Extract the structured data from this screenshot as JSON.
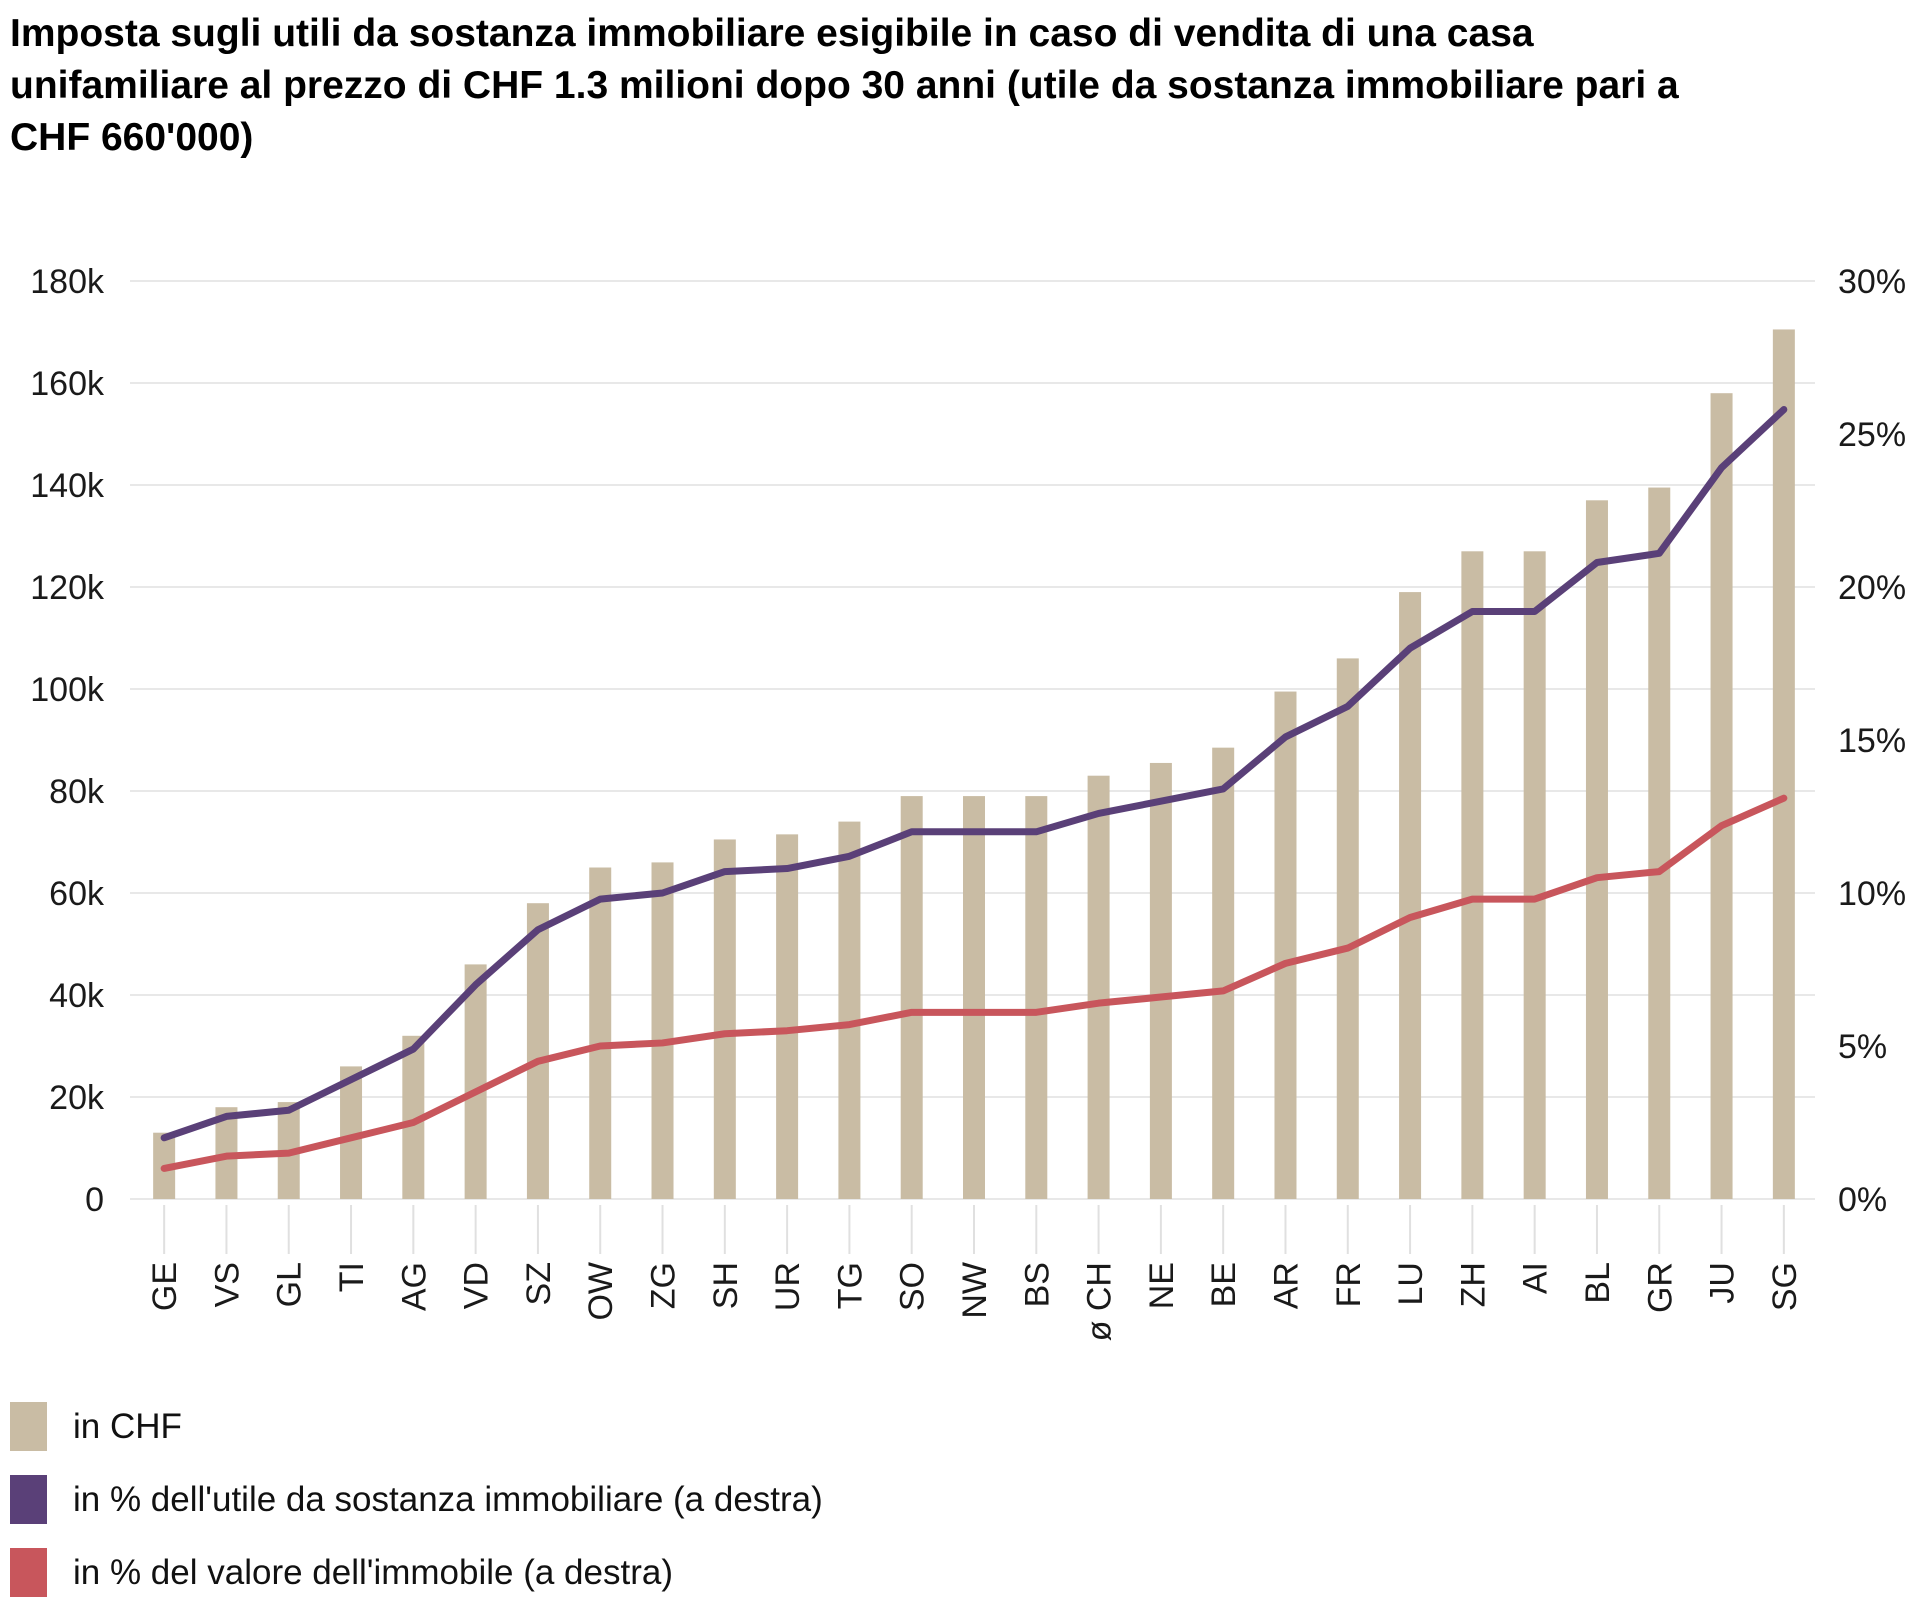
{
  "title_lines": [
    "Imposta sugli utili da sostanza immobiliare esigibile in caso di vendita di una casa",
    "unifamiliare al prezzo di CHF 1.3 milioni dopo 30 anni (utile da sostanza immobiliare pari a",
    "CHF 660'000)"
  ],
  "colors": {
    "bar": "#c9bca4",
    "line_gain_pct": "#5a4078",
    "line_value_pct": "#c8565c",
    "gridline": "#e8e8e8",
    "tick": "#e0e0e0",
    "axis_text": "#1a1a1a"
  },
  "legend": [
    {
      "label": "in CHF",
      "swatch": "bar"
    },
    {
      "label": "in % dell'utile da sostanza immobiliare (a destra)",
      "swatch": "line_gain_pct"
    },
    {
      "label": "in % del valore dell'immobile (a destra)",
      "swatch": "line_value_pct"
    }
  ],
  "chart_data": {
    "type": "bar",
    "title": "Imposta sugli utili da sostanza immobiliare esigibile in caso di vendita di una casa unifamiliare al prezzo di CHF 1.3 milioni dopo 30 anni (utile da sostanza immobiliare pari a CHF 660'000)",
    "categories": [
      "GE",
      "VS",
      "GL",
      "TI",
      "AG",
      "VD",
      "SZ",
      "OW",
      "ZG",
      "SH",
      "UR",
      "TG",
      "SO",
      "NW",
      "BS",
      "ø CH",
      "NE",
      "BE",
      "AR",
      "FR",
      "LU",
      "ZH",
      "AI",
      "BL",
      "GR",
      "JU",
      "SG"
    ],
    "series": [
      {
        "name": "in CHF",
        "type": "bar",
        "axis": "left",
        "values": [
          13000,
          18000,
          19000,
          26000,
          32000,
          46000,
          58000,
          65000,
          66000,
          70500,
          71500,
          74000,
          79000,
          79000,
          79000,
          83000,
          85500,
          88500,
          99500,
          106000,
          119000,
          127000,
          127000,
          137000,
          139500,
          158000,
          170500
        ]
      },
      {
        "name": "in % dell'utile da sostanza immobiliare (a destra)",
        "type": "line",
        "axis": "right",
        "values": [
          2.0,
          2.7,
          2.9,
          3.9,
          4.9,
          7.0,
          8.8,
          9.8,
          10.0,
          10.7,
          10.8,
          11.2,
          12.0,
          12.0,
          12.0,
          12.6,
          13.0,
          13.4,
          15.1,
          16.1,
          18.0,
          19.2,
          19.2,
          20.8,
          21.1,
          23.9,
          25.8
        ]
      },
      {
        "name": "in % del valore dell'immobile (a destra)",
        "type": "line",
        "axis": "right",
        "values": [
          1.0,
          1.4,
          1.5,
          2.0,
          2.5,
          3.5,
          4.5,
          5.0,
          5.1,
          5.4,
          5.5,
          5.7,
          6.1,
          6.1,
          6.1,
          6.4,
          6.6,
          6.8,
          7.7,
          8.2,
          9.2,
          9.8,
          9.8,
          10.5,
          10.7,
          12.2,
          13.1
        ]
      }
    ],
    "left_axis": {
      "min": 0,
      "max": 180000,
      "step": 20000,
      "tick_labels": [
        "0",
        "20k",
        "40k",
        "60k",
        "80k",
        "100k",
        "120k",
        "140k",
        "160k",
        "180k"
      ]
    },
    "right_axis": {
      "min": 0,
      "max": 30,
      "step": 5,
      "tick_labels": [
        "0%",
        "5%",
        "10%",
        "15%",
        "20%",
        "25%",
        "30%"
      ]
    },
    "grid": "horizontal",
    "legend_position": "bottom-left"
  }
}
